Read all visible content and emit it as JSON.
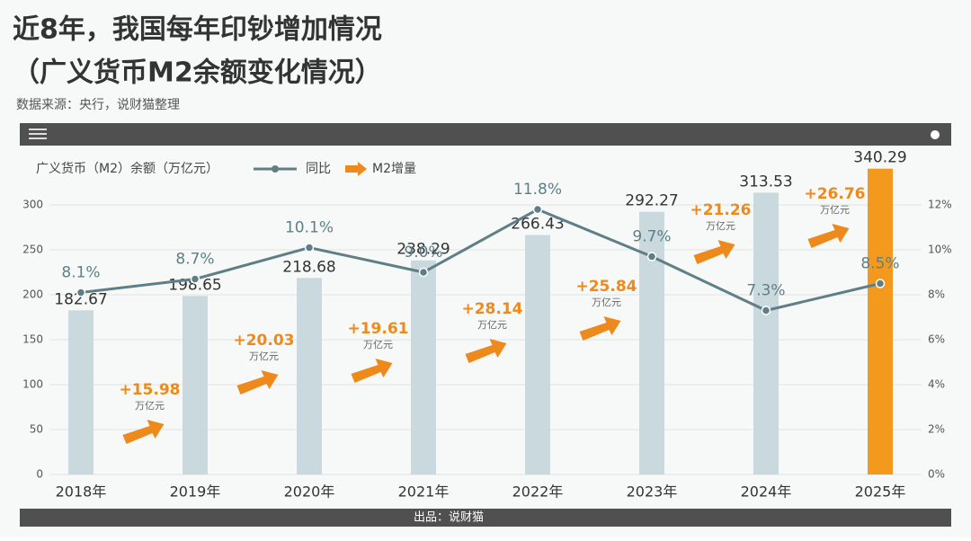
{
  "chart_data": {
    "type": "bar_line",
    "title": "近8年，我国每年印钞增加情况",
    "subtitle": "（广义货币M2余额变化情况）",
    "source": "数据来源：央行，说财猫整理",
    "footer": "出品：说财猫",
    "categories": [
      "2018年",
      "2019年",
      "2020年",
      "2021年",
      "2022年",
      "2023年",
      "2024年",
      "2025年"
    ],
    "series": [
      {
        "name": "广义货币（M2）余额（万亿元）",
        "color": "#c9d9de",
        "highlight_color": "#f39a1e",
        "values": [
          182.67,
          198.65,
          218.68,
          238.29,
          266.43,
          292.27,
          313.53,
          340.29
        ]
      },
      {
        "name": "同比",
        "color": "#5f7f86",
        "axis": "y2",
        "values": [
          8.1,
          8.7,
          10.1,
          9.0,
          11.8,
          9.7,
          7.3,
          8.5
        ],
        "value_labels": [
          "8.1%",
          "8.7%",
          "10.1%",
          "9.0%",
          "11.8%",
          "9.7%",
          "7.3%",
          "8.5%"
        ]
      },
      {
        "name": "M2增量",
        "color": "#ee8a1c",
        "unit": "万亿元",
        "values": [
          null,
          15.98,
          20.03,
          19.61,
          28.14,
          25.84,
          21.26,
          26.76
        ],
        "value_labels": [
          null,
          "+15.98",
          "+20.03",
          "+19.61",
          "+28.14",
          "+25.84",
          "+21.26",
          "+26.76"
        ]
      }
    ],
    "ylim": [
      0,
      300
    ],
    "yticks": [
      0,
      50,
      100,
      150,
      200,
      250,
      300
    ],
    "y2lim": [
      0,
      12
    ],
    "y2ticks": [
      {
        "value": 0,
        "label": "0%"
      },
      {
        "value": 2,
        "label": "2%"
      },
      {
        "value": 4,
        "label": "4%"
      },
      {
        "value": 6,
        "label": "6%"
      },
      {
        "value": 8,
        "label": "8%"
      },
      {
        "value": 10,
        "label": "10%"
      },
      {
        "value": 12,
        "label": "12%"
      }
    ],
    "grid": true
  }
}
